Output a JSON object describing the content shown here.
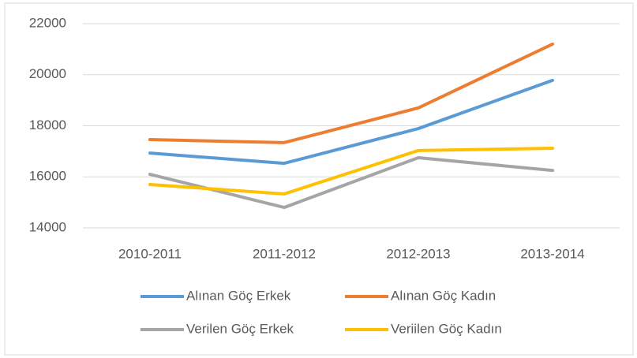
{
  "chart_data": {
    "type": "line",
    "categories": [
      "2010-2011",
      "2011-2012",
      "2012-2013",
      "2013-2014"
    ],
    "series": [
      {
        "name": "Alınan Göç Erkek",
        "color": "#5b9bd5",
        "values": [
          16930,
          16530,
          17890,
          19780
        ]
      },
      {
        "name": "Alınan Göç Kadın",
        "color": "#ed7d31",
        "values": [
          17460,
          17340,
          18700,
          21200
        ]
      },
      {
        "name": "Verilen Göç Erkek",
        "color": "#a5a5a5",
        "values": [
          16100,
          14800,
          16750,
          16250
        ]
      },
      {
        "name": "Veriilen Göç Kadın",
        "color": "#ffc000",
        "values": [
          15700,
          15330,
          17030,
          17120
        ]
      }
    ],
    "ylim": [
      14000,
      22000
    ],
    "yticks": [
      14000,
      16000,
      18000,
      20000,
      22000
    ],
    "grid": true,
    "legend": "bottom"
  }
}
